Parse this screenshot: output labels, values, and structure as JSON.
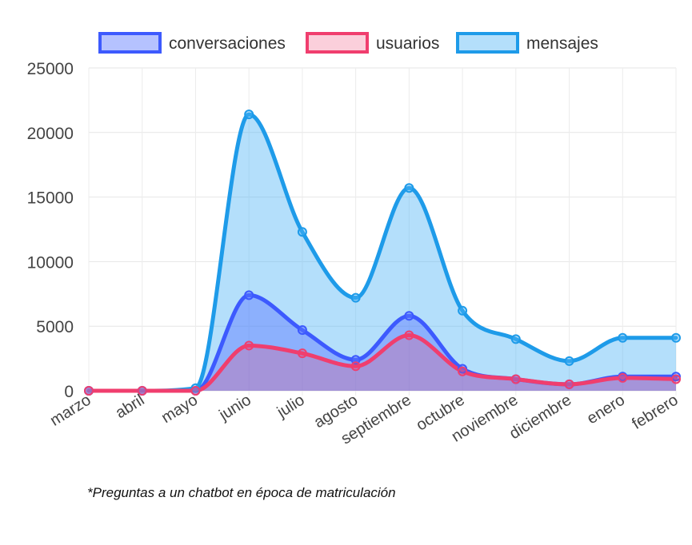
{
  "footnote": "*Preguntas a un chatbot en época de matriculación",
  "chart_data": {
    "type": "area",
    "categories": [
      "marzo",
      "abril",
      "mayo",
      "junio",
      "julio",
      "agosto",
      "septiembre",
      "octubre",
      "noviembre",
      "diciembre",
      "enero",
      "febrero"
    ],
    "y_ticks": [
      "0",
      "5000",
      "10000",
      "15000",
      "20000",
      "25000"
    ],
    "ylim": [
      0,
      25000
    ],
    "grid": true,
    "legend_position": "top",
    "series": [
      {
        "name": "conversaciones",
        "color": "#3d5afe",
        "fill": "rgba(90,120,255,0.45)",
        "values": [
          0,
          0,
          0,
          7400,
          4700,
          2400,
          5800,
          1700,
          900,
          500,
          1100,
          1100
        ]
      },
      {
        "name": "usuarios",
        "color": "#f03e6e",
        "fill": "rgba(240,62,110,0.25)",
        "values": [
          0,
          0,
          0,
          3500,
          2900,
          1900,
          4300,
          1500,
          900,
          500,
          1000,
          900
        ]
      },
      {
        "name": "mensajes",
        "color": "#1e9be9",
        "fill": "rgba(77,178,245,0.42)",
        "values": [
          0,
          0,
          200,
          21400,
          12300,
          7200,
          15700,
          6200,
          4000,
          2300,
          4100,
          4100
        ]
      }
    ]
  }
}
